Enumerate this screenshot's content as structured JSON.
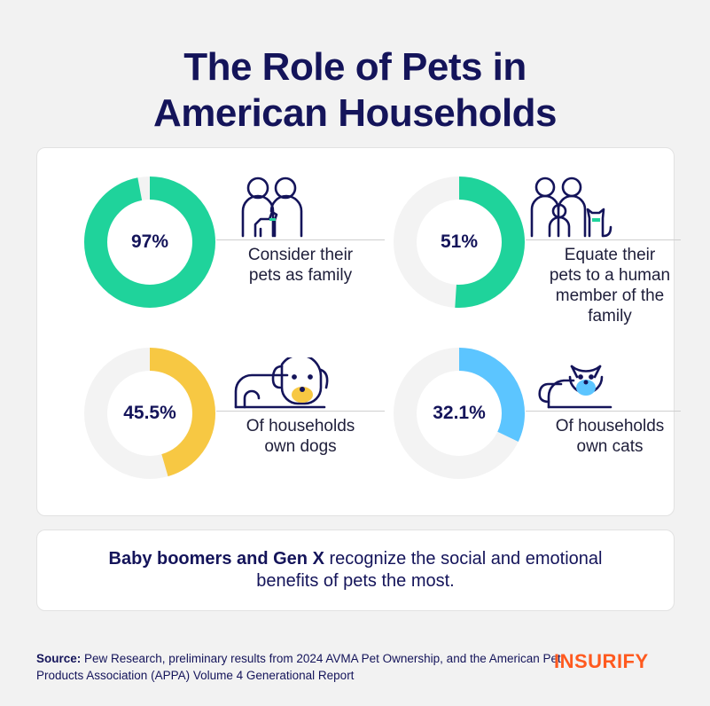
{
  "title_line1": "The Role of Pets in",
  "title_line2": "American Households",
  "colors": {
    "navy": "#14145a",
    "track": "#f3f3f3",
    "green": "#1fd39b",
    "yellow": "#f7c843",
    "blue": "#5cc5ff",
    "brand_orange": "#ff5a1f"
  },
  "chart_data": {
    "type": "donut",
    "items": [
      {
        "value": 97,
        "display": "97%",
        "label": "Consider their pets as family",
        "color": "#1fd39b",
        "icon": "two-people-with-dog-icon"
      },
      {
        "value": 51,
        "display": "51%",
        "label": "Equate their pets to a human member of the family",
        "color": "#1fd39b",
        "icon": "family-with-cat-icon"
      },
      {
        "value": 45.5,
        "display": "45.5%",
        "label": "Of households own dogs",
        "color": "#f7c843",
        "icon": "dog-icon"
      },
      {
        "value": 32.1,
        "display": "32.1%",
        "label": "Of households own cats",
        "color": "#5cc5ff",
        "icon": "cat-icon"
      }
    ]
  },
  "stats": [
    {
      "pct": "97%",
      "label": "Consider their\npets as family"
    },
    {
      "pct": "51%",
      "label": "Equate their\npets to a human\nmember of the\nfamily"
    },
    {
      "pct": "45.5%",
      "label": "Of households\nown dogs"
    },
    {
      "pct": "32.1%",
      "label": "Of households\nown cats"
    }
  ],
  "note": {
    "bold": "Baby boomers and Gen X",
    "text": " recognize the social and emotional benefits of pets the most."
  },
  "source": {
    "label": "Source:",
    "text": " Pew Research, preliminary results from 2024 AVMA Pet Ownership, and the American Pet Products Association (APPA) Volume 4 Generational Report"
  },
  "logo": "INSURIFY"
}
